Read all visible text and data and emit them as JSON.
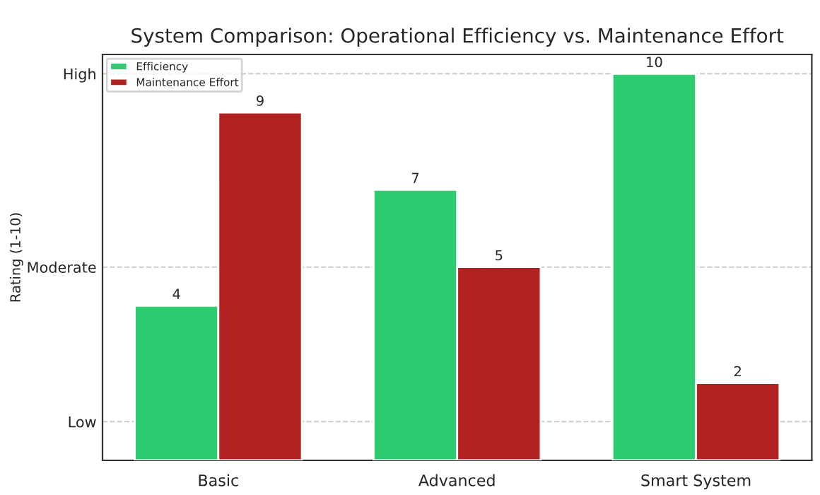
{
  "chart_data": {
    "type": "bar",
    "title": "System Comparison: Operational Efficiency vs. Maintenance Effort",
    "annotations": [
      "Rating (1-10)"
    ],
    "categories": [
      "Basic",
      "Advanced",
      "Smart System"
    ],
    "series": [
      {
        "name": "Efficiency",
        "color": "#2ecc71",
        "values": [
          4,
          7,
          10
        ]
      },
      {
        "name": "Maintenance Effort",
        "color": "#b22222",
        "values": [
          9,
          5,
          2
        ]
      }
    ],
    "ylim": [
      0,
      10.5
    ],
    "ref_lines": [
      {
        "axis": "y",
        "value": 1,
        "label": "Low",
        "color": "#cccccc",
        "line_style": "dashed"
      },
      {
        "axis": "y",
        "value": 5,
        "label": "Moderate",
        "color": "#cccccc",
        "line_style": "dashed"
      },
      {
        "axis": "y",
        "value": 10,
        "label": "High",
        "color": "#cccccc",
        "line_style": "dashed"
      }
    ],
    "legend": "top left",
    "data_labels": true
  }
}
